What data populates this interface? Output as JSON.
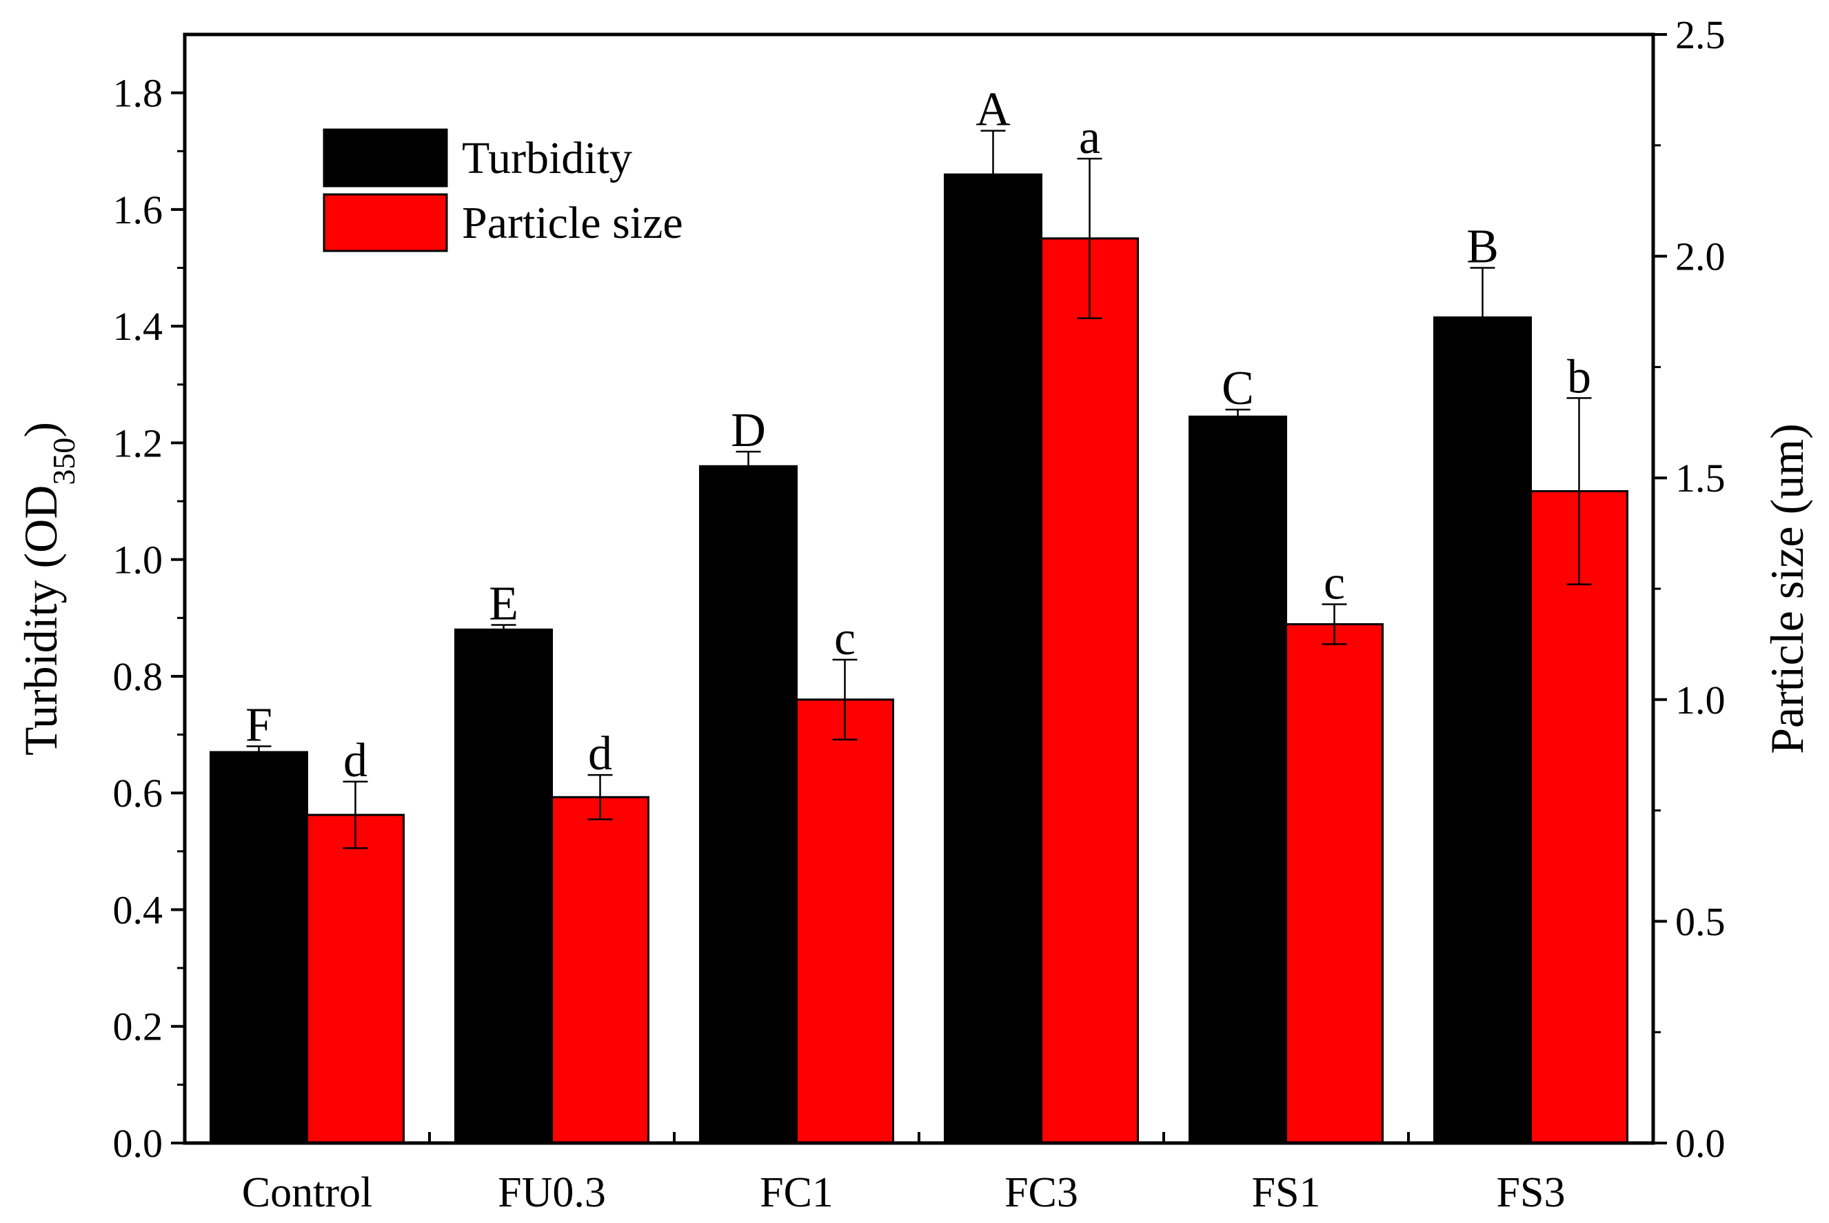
{
  "chart_data": {
    "type": "bar",
    "categories": [
      "Control",
      "FU0.3",
      "FC1",
      "FC3",
      "FS1",
      "FS3"
    ],
    "series": [
      {
        "name": "Turbidity",
        "axis": "left",
        "color": "#000000",
        "values": [
          0.67,
          0.88,
          1.16,
          1.66,
          1.245,
          1.415
        ],
        "errors": [
          0.01,
          0.008,
          0.025,
          0.075,
          0.012,
          0.085
        ],
        "letters": [
          "F",
          "E",
          "D",
          "A",
          "C",
          "B"
        ]
      },
      {
        "name": "Particle size",
        "axis": "right",
        "color": "#ff0000",
        "values": [
          0.74,
          0.78,
          1.0,
          2.04,
          1.17,
          1.47
        ],
        "errors": [
          0.075,
          0.05,
          0.09,
          0.18,
          0.045,
          0.21
        ],
        "letters": [
          "d",
          "d",
          "c",
          "a",
          "c",
          "b"
        ]
      }
    ],
    "yleft": {
      "label_main": "Turbidity (OD",
      "label_sub": "350",
      "label_close": ")",
      "ylim": [
        0.0,
        1.9
      ],
      "ticks": [
        "0.0",
        "0.2",
        "0.4",
        "0.6",
        "0.8",
        "1.0",
        "1.2",
        "1.4",
        "1.6",
        "1.8"
      ]
    },
    "yright": {
      "label": "Particle size (um)",
      "ylim": [
        0.0,
        2.5
      ],
      "ticks": [
        "0.0",
        "0.5",
        "1.0",
        "1.5",
        "2.0",
        "2.5"
      ]
    },
    "legend": {
      "position": "top-left",
      "entries": [
        "Turbidity",
        "Particle size"
      ]
    }
  }
}
